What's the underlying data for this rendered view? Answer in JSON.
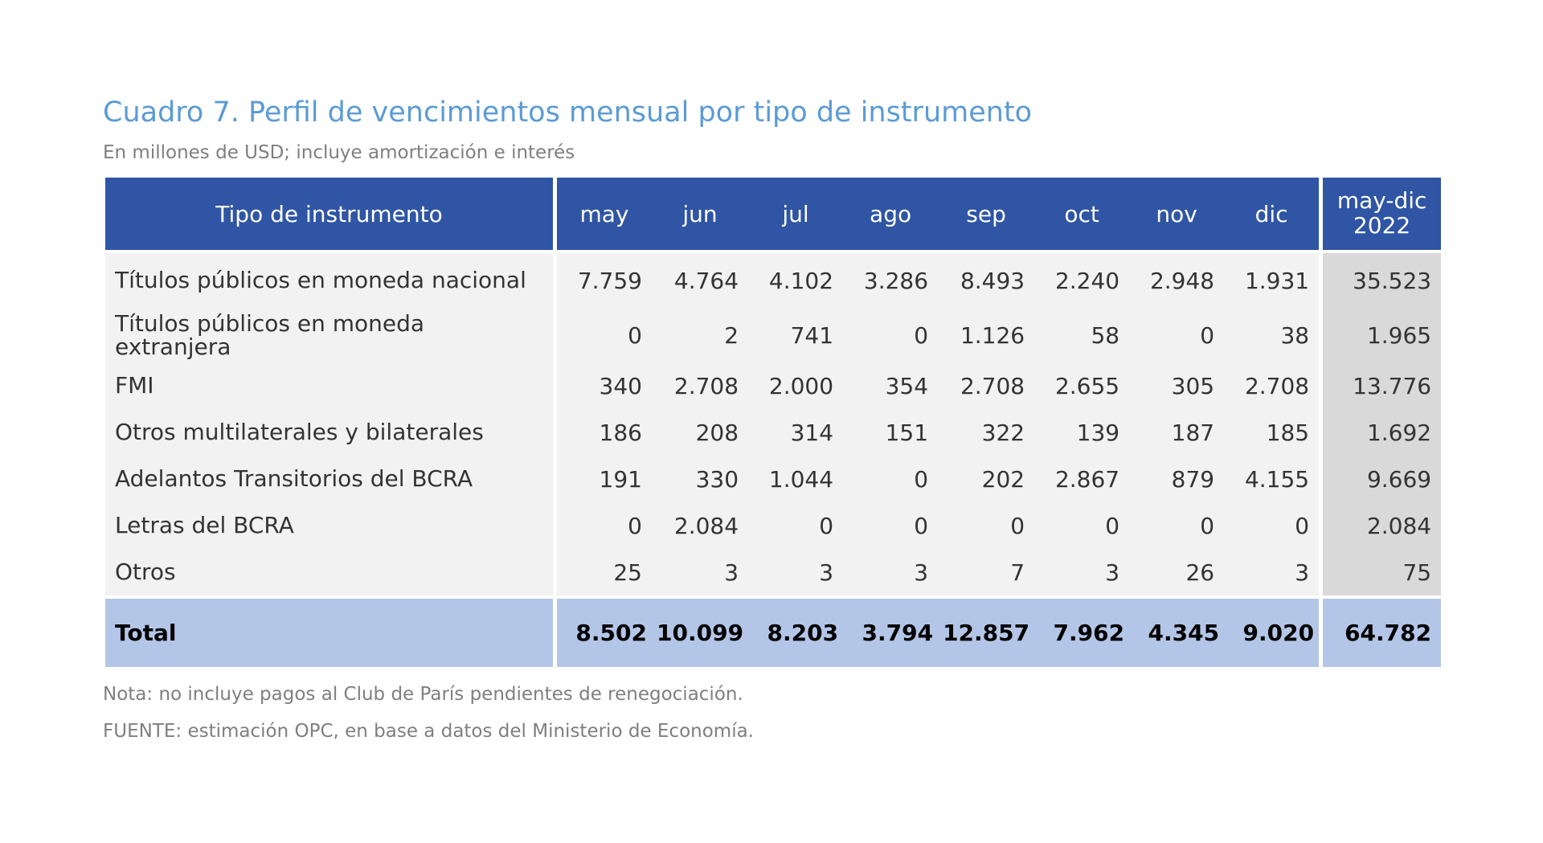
{
  "title": "Cuadro 7. Perfil de vencimientos mensual por tipo de instrumento",
  "subtitle": "En millones de USD; incluye amortización e interés",
  "table": {
    "headers": [
      "Tipo de instrumento",
      "may",
      "jun",
      "jul",
      "ago",
      "sep",
      "oct",
      "nov",
      "dic"
    ],
    "total_header": [
      "may-dic",
      "2022"
    ],
    "rows": [
      {
        "label": "Títulos públicos en moneda nacional",
        "values": [
          "7.759",
          "4.764",
          "4.102",
          "3.286",
          "8.493",
          "2.240",
          "2.948",
          "1.931"
        ],
        "total": "35.523"
      },
      {
        "label": "Títulos públicos en moneda extranjera",
        "values": [
          "0",
          "2",
          "741",
          "0",
          "1.126",
          "58",
          "0",
          "38"
        ],
        "total": "1.965"
      },
      {
        "label": "FMI",
        "values": [
          "340",
          "2.708",
          "2.000",
          "354",
          "2.708",
          "2.655",
          "305",
          "2.708"
        ],
        "total": "13.776"
      },
      {
        "label": "Otros multilaterales y bilaterales",
        "values": [
          "186",
          "208",
          "314",
          "151",
          "322",
          "139",
          "187",
          "185"
        ],
        "total": "1.692"
      },
      {
        "label": "Adelantos Transitorios del BCRA",
        "values": [
          "191",
          "330",
          "1.044",
          "0",
          "202",
          "2.867",
          "879",
          "4.155"
        ],
        "total": "9.669"
      },
      {
        "label": "Letras del BCRA",
        "values": [
          "0",
          "2.084",
          "0",
          "0",
          "0",
          "0",
          "0",
          "0"
        ],
        "total": "2.084"
      },
      {
        "label": "Otros",
        "values": [
          "25",
          "3",
          "3",
          "3",
          "7",
          "3",
          "26",
          "3"
        ],
        "total": "75"
      }
    ],
    "total_row": {
      "label": "Total",
      "values": [
        "8.502",
        "10.099",
        "8.203",
        "3.794",
        "12.857",
        "7.962",
        "4.345",
        "9.020"
      ],
      "total": "64.782"
    }
  },
  "notes": [
    "Nota: no incluye pagos al Club de París pendientes de renegociación.",
    "FUENTE: estimación OPC, en base a datos del Ministerio de Economía."
  ],
  "colors": {
    "header": "#2f55a4",
    "total_row": "#b4c6e7",
    "title": "#5b9bd5"
  }
}
